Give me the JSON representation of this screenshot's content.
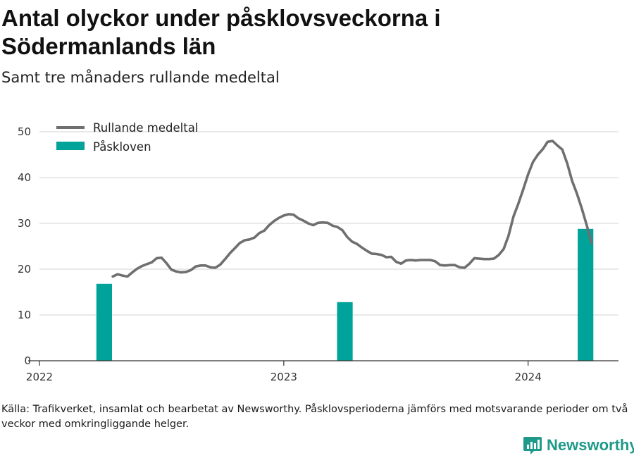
{
  "header": {
    "title": "Antal olyckor under påsklovsveckorna i Södermanlands län",
    "subtitle": "Samt tre månaders rullande medeltal"
  },
  "footer": {
    "caption": "Källa: Trafikverket, insamlat och bearbetat av Newsworthy. Påsklovsperioderna jämförs med motsvarande perioder om två veckor med omkringliggande helger.",
    "brand": "Newsworthy"
  },
  "colors": {
    "line": "#6f6e70",
    "bar": "#00a399",
    "grid": "#dcdcdc",
    "brand": "#1f9a8a"
  },
  "chart_data": {
    "type": "line+bar",
    "ylim": [
      0,
      50
    ],
    "yticks": [
      0,
      10,
      20,
      30,
      40,
      50
    ],
    "xlim": [
      2022.0,
      2024.37
    ],
    "xticks": [
      {
        "label": "2022",
        "x": 2022.0
      },
      {
        "label": "2023",
        "x": 2023.0
      },
      {
        "label": "2024",
        "x": 2024.0
      }
    ],
    "grid": true,
    "legend_position": "top-left",
    "series": [
      {
        "name": "Rullande medeltal",
        "type": "line",
        "color": "#6f6e70",
        "points": [
          [
            2022.3,
            18.4
          ],
          [
            2022.32,
            18.9
          ],
          [
            2022.34,
            18.6
          ],
          [
            2022.36,
            18.4
          ],
          [
            2022.38,
            19.3
          ],
          [
            2022.4,
            20.1
          ],
          [
            2022.42,
            20.7
          ],
          [
            2022.44,
            21.1
          ],
          [
            2022.46,
            21.5
          ],
          [
            2022.48,
            22.4
          ],
          [
            2022.5,
            22.5
          ],
          [
            2022.52,
            21.3
          ],
          [
            2022.54,
            19.9
          ],
          [
            2022.56,
            19.5
          ],
          [
            2022.58,
            19.3
          ],
          [
            2022.6,
            19.4
          ],
          [
            2022.62,
            19.8
          ],
          [
            2022.64,
            20.6
          ],
          [
            2022.66,
            20.8
          ],
          [
            2022.68,
            20.8
          ],
          [
            2022.7,
            20.4
          ],
          [
            2022.72,
            20.3
          ],
          [
            2022.74,
            21.0
          ],
          [
            2022.76,
            22.2
          ],
          [
            2022.78,
            23.5
          ],
          [
            2022.8,
            24.6
          ],
          [
            2022.82,
            25.7
          ],
          [
            2022.84,
            26.3
          ],
          [
            2022.86,
            26.5
          ],
          [
            2022.88,
            26.9
          ],
          [
            2022.9,
            27.9
          ],
          [
            2022.92,
            28.4
          ],
          [
            2022.94,
            29.6
          ],
          [
            2022.96,
            30.5
          ],
          [
            2022.98,
            31.2
          ],
          [
            2023.0,
            31.7
          ],
          [
            2023.02,
            32.0
          ],
          [
            2023.04,
            31.9
          ],
          [
            2023.06,
            31.1
          ],
          [
            2023.08,
            30.6
          ],
          [
            2023.1,
            30.0
          ],
          [
            2023.12,
            29.6
          ],
          [
            2023.14,
            30.1
          ],
          [
            2023.16,
            30.2
          ],
          [
            2023.18,
            30.1
          ],
          [
            2023.2,
            29.5
          ],
          [
            2023.22,
            29.2
          ],
          [
            2023.24,
            28.5
          ],
          [
            2023.26,
            27.0
          ],
          [
            2023.28,
            26.0
          ],
          [
            2023.3,
            25.5
          ],
          [
            2023.32,
            24.7
          ],
          [
            2023.34,
            24.0
          ],
          [
            2023.36,
            23.4
          ],
          [
            2023.38,
            23.3
          ],
          [
            2023.4,
            23.1
          ],
          [
            2023.42,
            22.6
          ],
          [
            2023.44,
            22.7
          ],
          [
            2023.46,
            21.6
          ],
          [
            2023.48,
            21.2
          ],
          [
            2023.5,
            21.9
          ],
          [
            2023.52,
            22.0
          ],
          [
            2023.54,
            21.9
          ],
          [
            2023.56,
            22.0
          ],
          [
            2023.58,
            22.0
          ],
          [
            2023.6,
            22.0
          ],
          [
            2023.62,
            21.7
          ],
          [
            2023.64,
            20.9
          ],
          [
            2023.66,
            20.8
          ],
          [
            2023.68,
            20.9
          ],
          [
            2023.7,
            20.9
          ],
          [
            2023.72,
            20.4
          ],
          [
            2023.74,
            20.3
          ],
          [
            2023.76,
            21.2
          ],
          [
            2023.78,
            22.4
          ],
          [
            2023.8,
            22.3
          ],
          [
            2023.82,
            22.2
          ],
          [
            2023.84,
            22.2
          ],
          [
            2023.86,
            22.3
          ],
          [
            2023.88,
            23.1
          ],
          [
            2023.9,
            24.4
          ],
          [
            2023.92,
            27.3
          ],
          [
            2023.94,
            31.5
          ],
          [
            2023.96,
            34.3
          ],
          [
            2023.98,
            37.4
          ],
          [
            2024.0,
            40.7
          ],
          [
            2024.02,
            43.4
          ],
          [
            2024.04,
            45.0
          ],
          [
            2024.06,
            46.2
          ],
          [
            2024.08,
            47.8
          ],
          [
            2024.1,
            48.0
          ],
          [
            2024.12,
            47.0
          ],
          [
            2024.14,
            46.1
          ],
          [
            2024.16,
            43.1
          ],
          [
            2024.18,
            39.3
          ],
          [
            2024.2,
            36.5
          ],
          [
            2024.22,
            33.2
          ],
          [
            2024.24,
            29.6
          ],
          [
            2024.26,
            25.7
          ]
        ]
      },
      {
        "name": "Påskloven",
        "type": "bar",
        "color": "#00a399",
        "bar_width_years": 0.064,
        "points": [
          [
            2022.265,
            16.8
          ],
          [
            2023.25,
            12.8
          ],
          [
            2024.235,
            28.8
          ]
        ]
      }
    ]
  }
}
